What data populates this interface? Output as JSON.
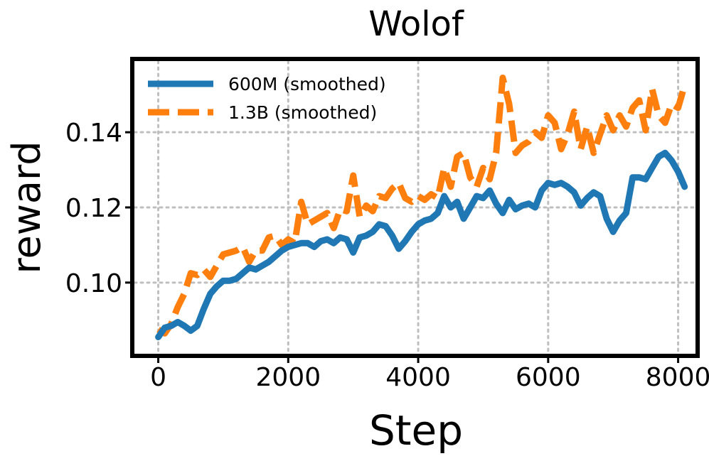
{
  "chart_data": {
    "type": "line",
    "title": "Wolof",
    "xlabel": "Step",
    "ylabel": "reward",
    "xlim": [
      -400,
      8300
    ],
    "ylim": [
      0.0805,
      0.1595
    ],
    "xticks": [
      0,
      2000,
      4000,
      6000,
      8000
    ],
    "xtick_labels": [
      "0",
      "2000",
      "4000",
      "6000",
      "8000"
    ],
    "yticks": [
      0.1,
      0.12,
      0.14
    ],
    "ytick_labels": [
      "0.10",
      "0.12",
      "0.14"
    ],
    "grid": true,
    "legend_position": "upper-left",
    "series": [
      {
        "name": "600M (smoothed)",
        "color": "#1f77b4",
        "style": "solid",
        "x": [
          0,
          100,
          200,
          300,
          400,
          500,
          600,
          700,
          800,
          900,
          1000,
          1100,
          1200,
          1300,
          1400,
          1500,
          1600,
          1700,
          1800,
          1900,
          2000,
          2100,
          2200,
          2300,
          2400,
          2500,
          2600,
          2700,
          2800,
          2900,
          3000,
          3100,
          3200,
          3300,
          3400,
          3500,
          3600,
          3700,
          3800,
          3900,
          4000,
          4100,
          4200,
          4300,
          4400,
          4500,
          4600,
          4700,
          4800,
          4900,
          5000,
          5100,
          5200,
          5300,
          5400,
          5500,
          5600,
          5700,
          5800,
          5900,
          6000,
          6100,
          6200,
          6300,
          6400,
          6500,
          6600,
          6700,
          6800,
          6900,
          7000,
          7100,
          7200,
          7300,
          7400,
          7500,
          7600,
          7700,
          7800,
          7900,
          8000,
          8100
        ],
        "values": [
          0.0855,
          0.088,
          0.0885,
          0.0895,
          0.0885,
          0.0872,
          0.0885,
          0.093,
          0.097,
          0.099,
          0.1005,
          0.1005,
          0.101,
          0.1025,
          0.104,
          0.1035,
          0.1045,
          0.1055,
          0.107,
          0.1085,
          0.1095,
          0.11,
          0.1105,
          0.1105,
          0.1095,
          0.111,
          0.1115,
          0.1105,
          0.112,
          0.1115,
          0.108,
          0.112,
          0.1125,
          0.1135,
          0.1155,
          0.115,
          0.1125,
          0.109,
          0.111,
          0.1135,
          0.1155,
          0.1165,
          0.117,
          0.1185,
          0.123,
          0.12,
          0.1215,
          0.117,
          0.12,
          0.123,
          0.1225,
          0.1245,
          0.121,
          0.1185,
          0.122,
          0.1195,
          0.1205,
          0.121,
          0.12,
          0.1245,
          0.1265,
          0.126,
          0.1265,
          0.1255,
          0.124,
          0.1205,
          0.1225,
          0.124,
          0.123,
          0.117,
          0.1135,
          0.1165,
          0.1185,
          0.128,
          0.128,
          0.1275,
          0.1305,
          0.1335,
          0.1345,
          0.1325,
          0.1295,
          0.1255
        ]
      },
      {
        "name": "1.3B (smoothed)",
        "color": "#ff7f0e",
        "style": "dashed",
        "x": [
          0,
          100,
          200,
          300,
          400,
          500,
          600,
          700,
          800,
          900,
          1000,
          1100,
          1200,
          1300,
          1400,
          1500,
          1600,
          1700,
          1800,
          1900,
          2000,
          2100,
          2200,
          2300,
          2400,
          2500,
          2600,
          2700,
          2800,
          2900,
          3000,
          3100,
          3200,
          3300,
          3400,
          3500,
          3600,
          3700,
          3800,
          3900,
          4000,
          4100,
          4200,
          4300,
          4400,
          4500,
          4600,
          4700,
          4800,
          4900,
          5000,
          5100,
          5200,
          5300,
          5400,
          5500,
          5600,
          5700,
          5800,
          5900,
          6000,
          6100,
          6200,
          6300,
          6400,
          6500,
          6600,
          6700,
          6800,
          6900,
          7000,
          7100,
          7200,
          7300,
          7400,
          7500,
          7600,
          7700,
          7800,
          7900,
          8000,
          8100
        ],
        "values": [
          0.0875,
          0.0865,
          0.089,
          0.0935,
          0.097,
          0.1025,
          0.102,
          0.1035,
          0.1015,
          0.1045,
          0.1075,
          0.108,
          0.1085,
          0.1095,
          0.1055,
          0.1085,
          0.1085,
          0.112,
          0.1125,
          0.11,
          0.1115,
          0.1105,
          0.1215,
          0.1155,
          0.1165,
          0.1175,
          0.1185,
          0.1145,
          0.1195,
          0.119,
          0.1285,
          0.1175,
          0.1205,
          0.119,
          0.123,
          0.1225,
          0.125,
          0.1265,
          0.1225,
          0.1215,
          0.123,
          0.122,
          0.1235,
          0.1225,
          0.1305,
          0.1255,
          0.1335,
          0.1345,
          0.128,
          0.1255,
          0.1305,
          0.1275,
          0.1345,
          0.1545,
          0.1475,
          0.1345,
          0.1365,
          0.1375,
          0.14,
          0.1385,
          0.1445,
          0.1425,
          0.1355,
          0.1395,
          0.1455,
          0.1355,
          0.1415,
          0.1345,
          0.1395,
          0.1445,
          0.1405,
          0.1445,
          0.1415,
          0.1465,
          0.1485,
          0.1405,
          0.1515,
          0.1445,
          0.1425,
          0.1475,
          0.1465,
          0.1525
        ]
      }
    ]
  }
}
